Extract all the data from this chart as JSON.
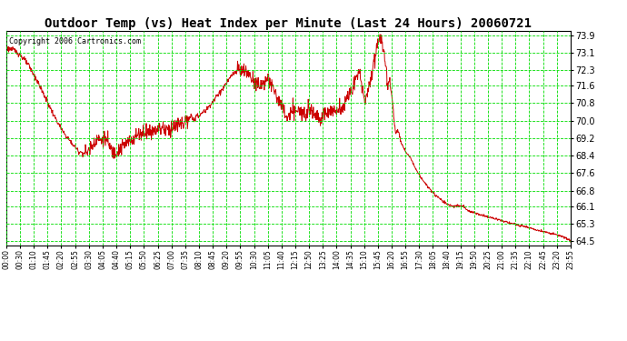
{
  "title": "Outdoor Temp (vs) Heat Index per Minute (Last 24 Hours) 20060721",
  "copyright": "Copyright 2006 Cartronics.com",
  "yticks": [
    64.5,
    65.3,
    66.1,
    66.8,
    67.6,
    68.4,
    69.2,
    70.0,
    70.8,
    71.6,
    72.3,
    73.1,
    73.9
  ],
  "ylim": [
    64.3,
    74.1
  ],
  "xtick_labels": [
    "00:00",
    "00:30",
    "01:10",
    "01:45",
    "02:20",
    "02:55",
    "03:30",
    "04:05",
    "04:40",
    "05:15",
    "05:50",
    "06:25",
    "07:00",
    "07:35",
    "08:10",
    "08:45",
    "09:20",
    "09:55",
    "10:30",
    "11:05",
    "11:40",
    "12:15",
    "12:50",
    "13:25",
    "14:00",
    "14:35",
    "15:10",
    "15:45",
    "16:20",
    "16:55",
    "17:30",
    "18:05",
    "18:40",
    "19:15",
    "19:50",
    "20:25",
    "21:00",
    "21:35",
    "22:10",
    "22:45",
    "23:20",
    "23:55"
  ],
  "background_color": "#ffffff",
  "plot_bg_color": "#ffffff",
  "grid_color": "#00dd00",
  "line_color": "#cc0000",
  "title_fontsize": 10,
  "copyright_fontsize": 6,
  "curve_points": [
    [
      0.0,
      73.3
    ],
    [
      0.015,
      73.2
    ],
    [
      0.025,
      73.0
    ],
    [
      0.04,
      72.5
    ],
    [
      0.055,
      71.8
    ],
    [
      0.07,
      71.0
    ],
    [
      0.085,
      70.2
    ],
    [
      0.1,
      69.5
    ],
    [
      0.115,
      69.0
    ],
    [
      0.128,
      68.6
    ],
    [
      0.14,
      68.5
    ],
    [
      0.148,
      68.7
    ],
    [
      0.155,
      69.0
    ],
    [
      0.16,
      69.2
    ],
    [
      0.168,
      69.1
    ],
    [
      0.175,
      69.2
    ],
    [
      0.18,
      69.0
    ],
    [
      0.185,
      68.7
    ],
    [
      0.19,
      68.5
    ],
    [
      0.195,
      68.6
    ],
    [
      0.205,
      68.8
    ],
    [
      0.215,
      69.0
    ],
    [
      0.225,
      69.2
    ],
    [
      0.235,
      69.4
    ],
    [
      0.245,
      69.5
    ],
    [
      0.255,
      69.5
    ],
    [
      0.265,
      69.6
    ],
    [
      0.275,
      69.7
    ],
    [
      0.285,
      69.6
    ],
    [
      0.295,
      69.7
    ],
    [
      0.305,
      69.8
    ],
    [
      0.315,
      69.9
    ],
    [
      0.325,
      70.0
    ],
    [
      0.34,
      70.2
    ],
    [
      0.355,
      70.5
    ],
    [
      0.37,
      71.0
    ],
    [
      0.385,
      71.5
    ],
    [
      0.395,
      71.9
    ],
    [
      0.405,
      72.2
    ],
    [
      0.415,
      72.3
    ],
    [
      0.425,
      72.2
    ],
    [
      0.433,
      72.0
    ],
    [
      0.44,
      71.8
    ],
    [
      0.448,
      71.6
    ],
    [
      0.455,
      71.7
    ],
    [
      0.46,
      71.9
    ],
    [
      0.465,
      71.8
    ],
    [
      0.47,
      71.6
    ],
    [
      0.478,
      71.2
    ],
    [
      0.485,
      70.8
    ],
    [
      0.492,
      70.4
    ],
    [
      0.498,
      70.1
    ],
    [
      0.505,
      70.3
    ],
    [
      0.512,
      70.5
    ],
    [
      0.518,
      70.4
    ],
    [
      0.525,
      70.3
    ],
    [
      0.532,
      70.5
    ],
    [
      0.538,
      70.6
    ],
    [
      0.545,
      70.4
    ],
    [
      0.552,
      70.2
    ],
    [
      0.558,
      70.1
    ],
    [
      0.565,
      70.3
    ],
    [
      0.572,
      70.5
    ],
    [
      0.58,
      70.4
    ],
    [
      0.59,
      70.5
    ],
    [
      0.6,
      70.8
    ],
    [
      0.61,
      71.3
    ],
    [
      0.618,
      71.8
    ],
    [
      0.625,
      72.2
    ],
    [
      0.632,
      71.5
    ],
    [
      0.636,
      70.8
    ],
    [
      0.64,
      71.2
    ],
    [
      0.645,
      71.8
    ],
    [
      0.65,
      72.5
    ],
    [
      0.655,
      73.2
    ],
    [
      0.66,
      73.7
    ],
    [
      0.664,
      73.9
    ],
    [
      0.667,
      73.5
    ],
    [
      0.67,
      73.1
    ],
    [
      0.673,
      72.3
    ],
    [
      0.676,
      71.6
    ],
    [
      0.679,
      71.8
    ],
    [
      0.682,
      71.3
    ],
    [
      0.685,
      70.8
    ],
    [
      0.688,
      69.8
    ],
    [
      0.691,
      69.4
    ],
    [
      0.694,
      69.6
    ],
    [
      0.697,
      69.3
    ],
    [
      0.7,
      69.0
    ],
    [
      0.705,
      68.7
    ],
    [
      0.71,
      68.5
    ],
    [
      0.716,
      68.3
    ],
    [
      0.722,
      68.0
    ],
    [
      0.73,
      67.6
    ],
    [
      0.74,
      67.2
    ],
    [
      0.75,
      66.9
    ],
    [
      0.76,
      66.6
    ],
    [
      0.77,
      66.4
    ],
    [
      0.78,
      66.2
    ],
    [
      0.79,
      66.1
    ],
    [
      0.8,
      66.1
    ],
    [
      0.81,
      66.1
    ],
    [
      0.818,
      65.9
    ],
    [
      0.828,
      65.8
    ],
    [
      0.84,
      65.7
    ],
    [
      0.855,
      65.6
    ],
    [
      0.87,
      65.5
    ],
    [
      0.882,
      65.4
    ],
    [
      0.897,
      65.3
    ],
    [
      0.912,
      65.2
    ],
    [
      0.927,
      65.1
    ],
    [
      0.942,
      65.0
    ],
    [
      0.958,
      64.9
    ],
    [
      0.973,
      64.8
    ],
    [
      0.987,
      64.7
    ],
    [
      1.0,
      64.5
    ]
  ]
}
